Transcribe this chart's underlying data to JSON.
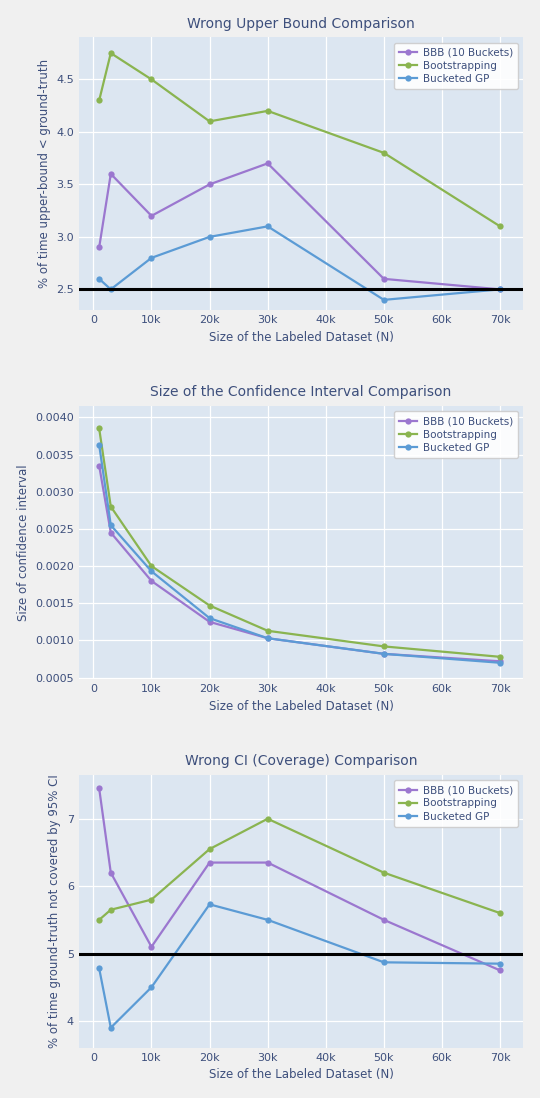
{
  "x_values": [
    1000,
    3000,
    10000,
    20000,
    30000,
    50000,
    70000
  ],
  "x_ticks": [
    0,
    10000,
    20000,
    30000,
    40000,
    50000,
    60000,
    70000
  ],
  "x_tick_labels": [
    "0",
    "10k",
    "20k",
    "30k",
    "40k",
    "50k",
    "60k",
    "70k"
  ],
  "plot1": {
    "title": "Wrong Upper Bound Comparison",
    "ylabel": "% of time upper-bound < ground-truth",
    "xlabel": "Size of the Labeled Dataset (N)",
    "bbb_y": [
      2.9,
      3.6,
      3.2,
      3.5,
      3.7,
      2.6,
      2.5
    ],
    "boot_y": [
      4.3,
      4.75,
      4.5,
      4.1,
      4.2,
      3.8,
      3.1
    ],
    "bgp_y": [
      2.6,
      2.5,
      2.8,
      3.0,
      3.1,
      2.4,
      2.5
    ],
    "hline": 2.5,
    "ylim": [
      2.3,
      4.9
    ],
    "yticks": [
      2.5,
      3.0,
      3.5,
      4.0,
      4.5
    ]
  },
  "plot2": {
    "title": "Size of the Confidence Interval Comparison",
    "ylabel": "Size of confidence interval",
    "xlabel": "Size of the Labeled Dataset (N)",
    "bbb_y": [
      0.00335,
      0.00245,
      0.0018,
      0.00125,
      0.00103,
      0.00082,
      0.00072
    ],
    "boot_y": [
      0.00385,
      0.0028,
      0.002,
      0.00147,
      0.00113,
      0.00092,
      0.00078
    ],
    "bgp_y": [
      0.00363,
      0.00255,
      0.00193,
      0.0013,
      0.00103,
      0.00082,
      0.0007
    ],
    "ylim": [
      0.00048,
      0.00415
    ],
    "yticks": [
      0.0005,
      0.001,
      0.0015,
      0.002,
      0.0025,
      0.003,
      0.0035,
      0.004
    ]
  },
  "plot3": {
    "title": "Wrong CI (Coverage) Comparison",
    "ylabel": "% of time ground-truth not covered by 95% CI",
    "xlabel": "Size of the Labeled Dataset (N)",
    "bbb_y": [
      7.45,
      6.2,
      5.1,
      6.35,
      6.35,
      5.5,
      4.75
    ],
    "boot_y": [
      5.5,
      5.65,
      5.8,
      6.55,
      7.0,
      6.2,
      5.6
    ],
    "bgp_y": [
      4.78,
      3.9,
      4.5,
      5.73,
      5.5,
      4.87,
      4.85
    ],
    "hline": 5.0,
    "ylim": [
      3.6,
      7.65
    ],
    "yticks": [
      4.0,
      5.0,
      6.0,
      7.0
    ]
  },
  "color_bbb": "#9b77cf",
  "color_boot": "#8ab450",
  "color_bgp": "#5b9bd5",
  "bg_color": "#dce6f1",
  "fig_bg_color": "#f0f0f0",
  "hline_color": "black",
  "legend_labels": [
    "BBB (10 Buckets)",
    "Bootstrapping",
    "Bucketed GP"
  ],
  "marker": "o",
  "markersize": 4.5,
  "linewidth": 1.6,
  "title_fontsize": 10,
  "label_fontsize": 8.5,
  "tick_fontsize": 8,
  "legend_fontsize": 7.5
}
